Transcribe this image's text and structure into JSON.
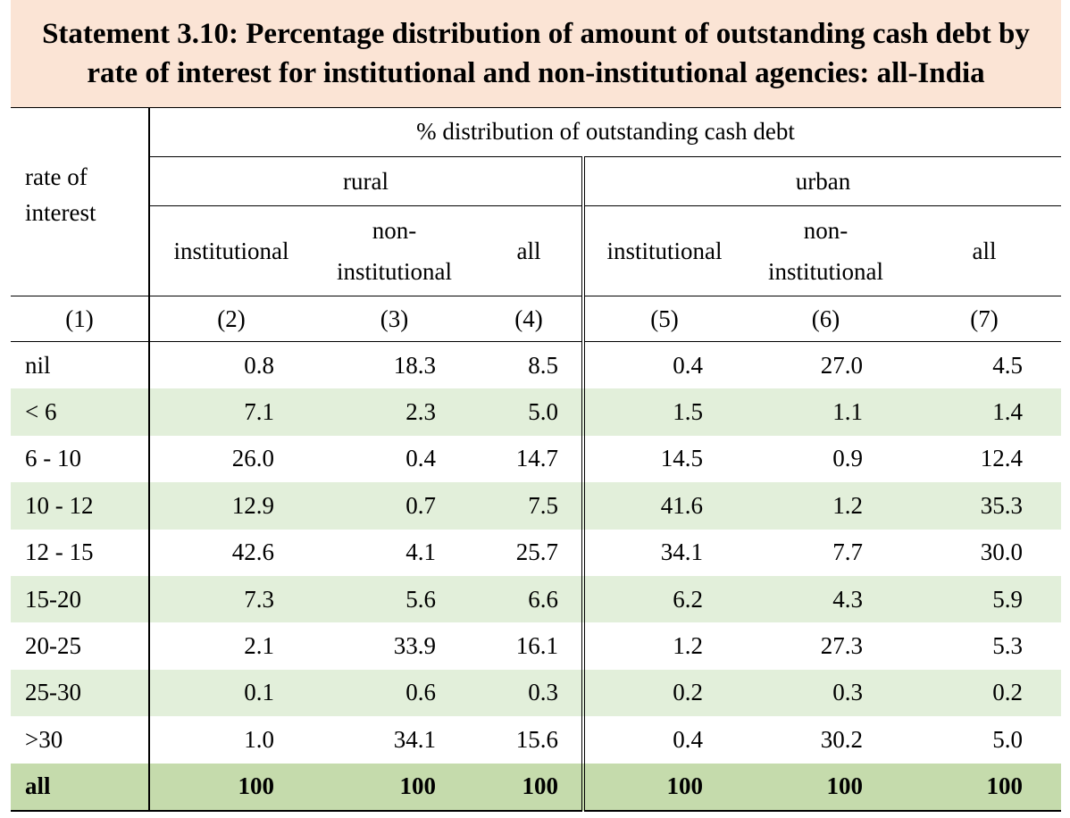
{
  "title": {
    "line1": "Statement 3.10: Percentage distribution of amount of outstanding cash debt by",
    "line2": "rate of interest for institutional and non-institutional agencies: all-India"
  },
  "header": {
    "stub": [
      "rate of",
      "interest"
    ],
    "group": "% distribution of outstanding cash debt",
    "rural": "rural",
    "urban": "urban",
    "institutional": "institutional",
    "non_institutional": [
      "non-",
      "institutional"
    ],
    "all": "all",
    "col_numbers": [
      "(1)",
      "(2)",
      "(3)",
      "(4)",
      "(5)",
      "(6)",
      "(7)"
    ]
  },
  "rows": [
    {
      "label": "nil",
      "values": [
        "0.8",
        "18.3",
        "8.5",
        "0.4",
        "27.0",
        "4.5"
      ]
    },
    {
      "label": "< 6",
      "values": [
        "7.1",
        "2.3",
        "5.0",
        "1.5",
        "1.1",
        "1.4"
      ]
    },
    {
      "label": "6 - 10",
      "values": [
        "26.0",
        "0.4",
        "14.7",
        "14.5",
        "0.9",
        "12.4"
      ]
    },
    {
      "label": "10 - 12",
      "values": [
        "12.9",
        "0.7",
        "7.5",
        "41.6",
        "1.2",
        "35.3"
      ]
    },
    {
      "label": "12 - 15",
      "values": [
        "42.6",
        "4.1",
        "25.7",
        "34.1",
        "7.7",
        "30.0"
      ]
    },
    {
      "label": "15-20",
      "values": [
        "7.3",
        "5.6",
        "6.6",
        "6.2",
        "4.3",
        "5.9"
      ]
    },
    {
      "label": "20-25",
      "values": [
        "2.1",
        "33.9",
        "16.1",
        "1.2",
        "27.3",
        "5.3"
      ]
    },
    {
      "label": "25-30",
      "values": [
        "0.1",
        "0.6",
        "0.3",
        "0.2",
        "0.3",
        "0.2"
      ]
    },
    {
      "label": ">30",
      "values": [
        "1.0",
        "34.1",
        "15.6",
        "0.4",
        "30.2",
        "5.0"
      ]
    }
  ],
  "total": {
    "label": "all",
    "values": [
      "100",
      "100",
      "100",
      "100",
      "100",
      "100"
    ]
  },
  "colors": {
    "title_bg": "#fbe4d5",
    "row_shade": "#e2efda",
    "total_bg": "#c5dbac"
  }
}
